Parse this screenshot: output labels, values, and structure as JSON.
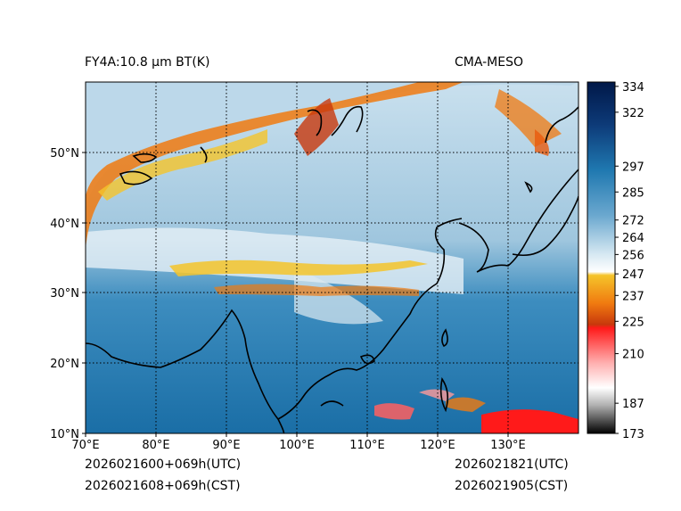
{
  "header": {
    "left_title": "FY4A:10.8 µm BT(K)",
    "right_title": "CMA-MESO"
  },
  "footer": {
    "init_utc": "2026021600+069h(UTC)",
    "init_cst": "2026021608+069h(CST)",
    "valid_utc": "2026021821(UTC)",
    "valid_cst": "2026021905(CST)"
  },
  "map": {
    "lon_labels": [
      "70°E",
      "80°E",
      "90°E",
      "100°E",
      "110°E",
      "120°E",
      "130°E"
    ],
    "lat_labels": [
      "50°N",
      "40°N",
      "30°N",
      "20°N",
      "10°N"
    ],
    "lon_range": [
      70,
      140
    ],
    "lat_range": [
      10,
      60
    ]
  },
  "colorbar": {
    "ticks": [
      "334",
      "322",
      "297",
      "285",
      "272",
      "264",
      "256",
      "247",
      "237",
      "225",
      "210",
      "187",
      "173"
    ],
    "range": [
      173,
      336
    ]
  },
  "colors": {
    "cold_red": "#ff1a1a",
    "orange": "#f07a10",
    "yellow": "#f5c42a",
    "white": "#ffffff",
    "light_blue": "#bcd8ea",
    "mid_blue": "#1f78b0",
    "navy": "#001848"
  }
}
